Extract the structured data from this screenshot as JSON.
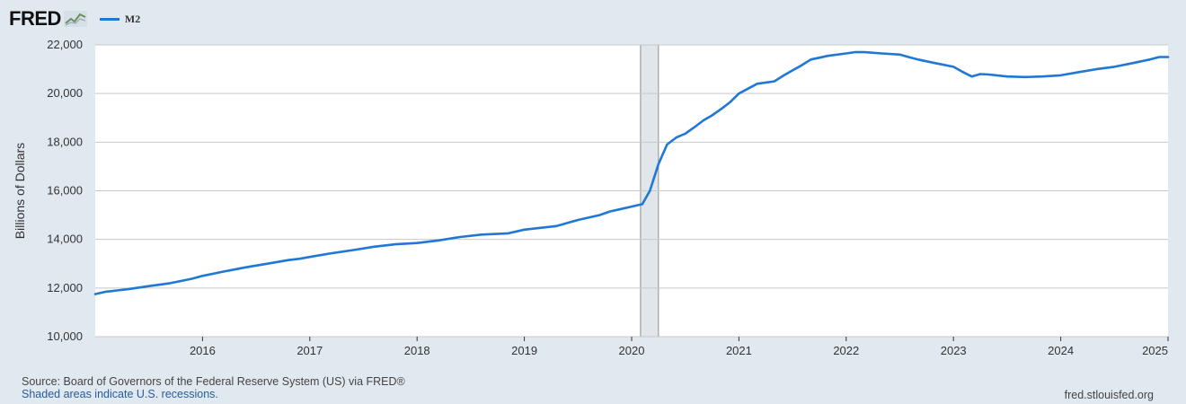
{
  "header": {
    "logo_text": "FRED",
    "logo_icon": "line-chart-icon",
    "legend_label": "M2"
  },
  "footer": {
    "source": "Source: Board of Governors of the Federal Reserve System (US) via FRED®",
    "recession_note": "Shaded areas indicate U.S. recessions.",
    "site": "fred.stlouisfed.org"
  },
  "colors": {
    "series": "#1f77d6",
    "recession": "#e1e6ea",
    "background": "#e1e9f0"
  },
  "chart_data": {
    "type": "line",
    "title": "",
    "xlabel": "",
    "ylabel": "Billions of Dollars",
    "xlim": [
      2015.0,
      2025.0
    ],
    "ylim": [
      10000,
      22000
    ],
    "grid": true,
    "legend": "top-left",
    "y_ticks": [
      "10,000",
      "12,000",
      "14,000",
      "16,000",
      "18,000",
      "20,000",
      "22,000"
    ],
    "y_tick_values": [
      10000,
      12000,
      14000,
      16000,
      18000,
      20000,
      22000
    ],
    "x_ticks": [
      "2016",
      "2017",
      "2018",
      "2019",
      "2020",
      "2021",
      "2022",
      "2023",
      "2024",
      "2025"
    ],
    "x_tick_values": [
      2016,
      2017,
      2018,
      2019,
      2020,
      2021,
      2022,
      2023,
      2024,
      2025
    ],
    "recessions": [
      [
        2020.083,
        2020.25
      ]
    ],
    "series": [
      {
        "name": "M2",
        "x": [
          2015.0,
          2015.1,
          2015.3,
          2015.5,
          2015.7,
          2015.9,
          2016.0,
          2016.2,
          2016.4,
          2016.6,
          2016.8,
          2016.9,
          2017.0,
          2017.2,
          2017.4,
          2017.6,
          2017.8,
          2018.0,
          2018.2,
          2018.4,
          2018.6,
          2018.85,
          2019.0,
          2019.3,
          2019.5,
          2019.7,
          2019.8,
          2019.9,
          2020.0,
          2020.1,
          2020.17,
          2020.25,
          2020.33,
          2020.42,
          2020.5,
          2020.58,
          2020.67,
          2020.75,
          2020.83,
          2020.92,
          2021.0,
          2021.17,
          2021.33,
          2021.42,
          2021.5,
          2021.58,
          2021.67,
          2021.83,
          2022.0,
          2022.08,
          2022.17,
          2022.33,
          2022.5,
          2022.58,
          2022.67,
          2022.83,
          2023.0,
          2023.08,
          2023.17,
          2023.25,
          2023.33,
          2023.5,
          2023.67,
          2023.83,
          2024.0,
          2024.17,
          2024.33,
          2024.5,
          2024.67,
          2024.83,
          2024.92,
          2025.0
        ],
        "y": [
          11750,
          11850,
          11950,
          12080,
          12200,
          12380,
          12500,
          12680,
          12850,
          13000,
          13150,
          13200,
          13280,
          13430,
          13560,
          13700,
          13800,
          13850,
          13960,
          14100,
          14200,
          14250,
          14400,
          14550,
          14800,
          15000,
          15150,
          15250,
          15350,
          15450,
          16000,
          17100,
          17900,
          18200,
          18350,
          18600,
          18900,
          19100,
          19350,
          19650,
          20000,
          20400,
          20500,
          20750,
          20950,
          21150,
          21400,
          21550,
          21650,
          21700,
          21700,
          21650,
          21600,
          21500,
          21400,
          21250,
          21100,
          20900,
          20700,
          20800,
          20780,
          20700,
          20680,
          20700,
          20750,
          20880,
          21000,
          21100,
          21250,
          21400,
          21500,
          21500
        ]
      }
    ]
  }
}
